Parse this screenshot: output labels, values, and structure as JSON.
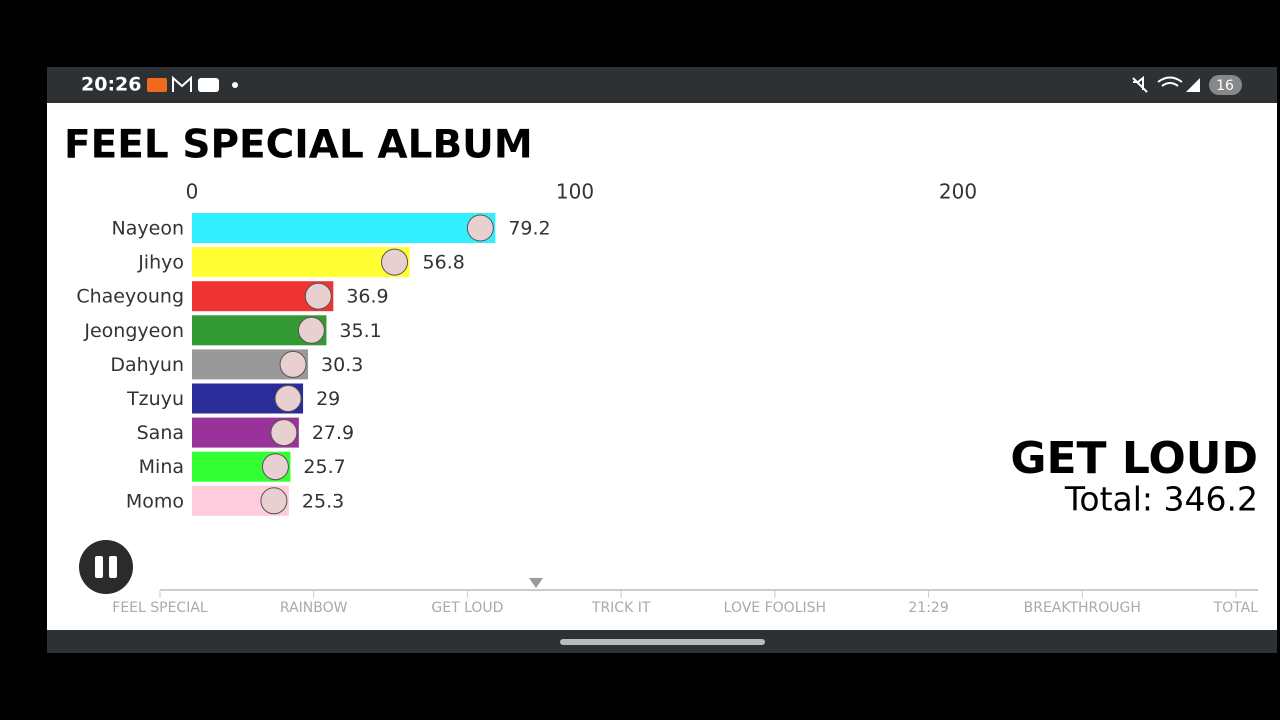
{
  "status_bar": {
    "time": "20:26",
    "battery": "16"
  },
  "chart_data": {
    "type": "bar",
    "orientation": "horizontal",
    "title": "FEEL SPECIAL ALBUM",
    "categories": [
      "Nayeon",
      "Jihyo",
      "Chaeyoung",
      "Jeongyeon",
      "Dahyun",
      "Tzuyu",
      "Sana",
      "Mina",
      "Momo"
    ],
    "values": [
      79.2,
      56.8,
      36.9,
      35.1,
      30.3,
      29,
      27.9,
      25.7,
      25.3
    ],
    "colors": [
      "#33eeff",
      "#ffff33",
      "#ee3333",
      "#339933",
      "#999999",
      "#2b2b99",
      "#993399",
      "#33ff33",
      "#ffccdd"
    ],
    "xlim": [
      0,
      250
    ],
    "xticks": [
      0,
      100,
      200
    ],
    "caption": "GET LOUD",
    "total_text": "Total: 346.2"
  },
  "timeline": [
    "FEEL SPECIAL",
    "RAINBOW",
    "GET LOUD",
    "TRICK IT",
    "LOVE FOOLISH",
    "21:29",
    "BREAKTHROUGH",
    "TOTAL"
  ]
}
